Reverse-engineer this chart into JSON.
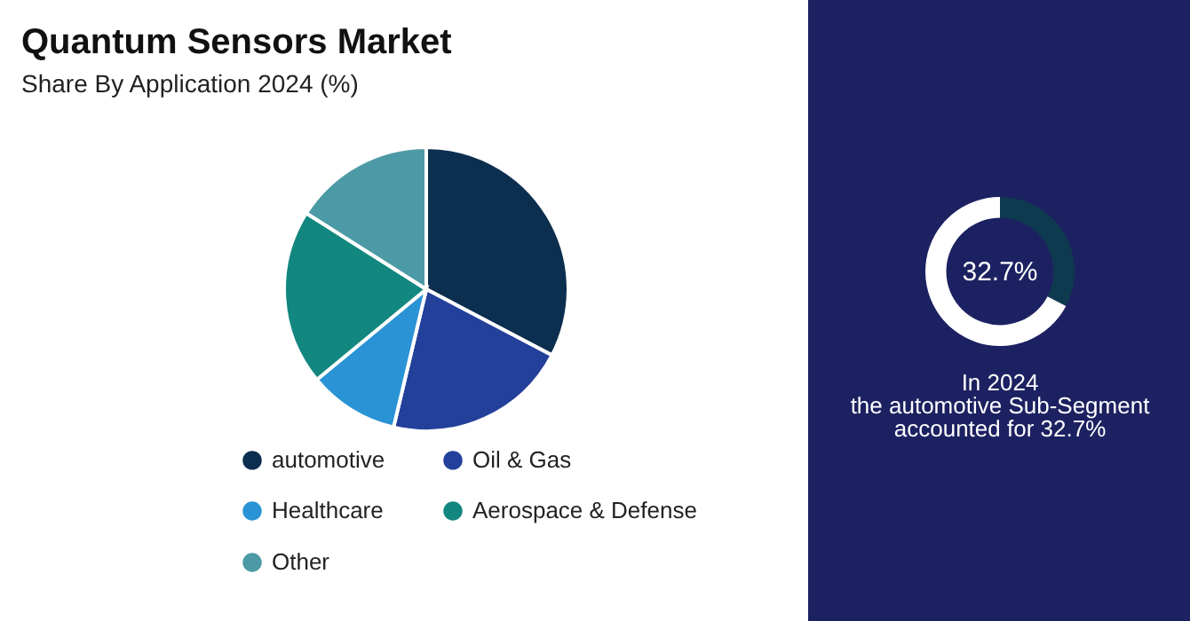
{
  "chart_data": [
    {
      "type": "pie",
      "title": "Quantum Sensors Market",
      "subtitle": "Share By Application 2024 (%)",
      "categories": [
        "automotive",
        "Oil & Gas",
        "Healthcare",
        "Aerospace & Defense",
        "Other"
      ],
      "values": [
        32.7,
        21,
        10.3,
        20,
        16
      ],
      "colors": [
        "#0d2f4f",
        "#23409a",
        "#2a93d5",
        "#12877f",
        "#4c9aa5"
      ],
      "legend": "bottom"
    },
    {
      "type": "donut",
      "categories": [
        null,
        null
      ],
      "values": [
        32.7,
        67.3
      ],
      "colors": [
        "#0e3a4f",
        "#ffffff"
      ],
      "legend": false,
      "annotations": [
        "32.7%",
        "In 2024\nthe automotive Sub-Segment\naccounted for 32.7%"
      ]
    }
  ]
}
